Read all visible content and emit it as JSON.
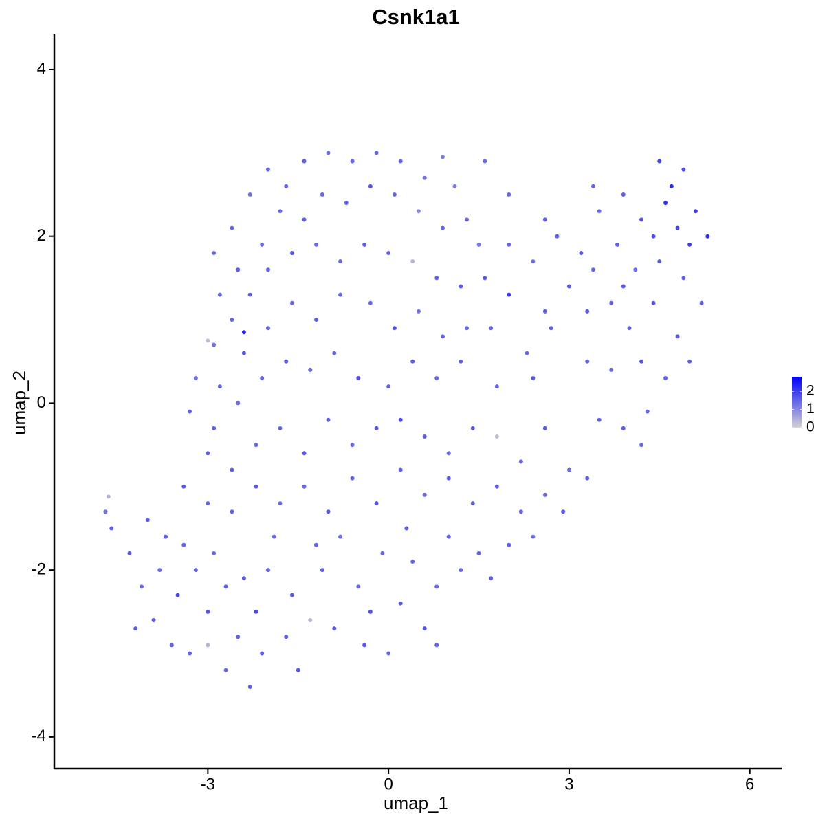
{
  "chart_data": {
    "type": "scatter",
    "title": "Csnk1a1",
    "xlabel": "umap_1",
    "ylabel": "umap_2",
    "xlim": [
      -5.55,
      6.54
    ],
    "ylim": [
      -4.38,
      4.42
    ],
    "xticks": [
      -3,
      0,
      3,
      6
    ],
    "yticks": [
      -4,
      -2,
      0,
      2,
      4
    ],
    "color_low": "#d3d3d3",
    "color_high": "#0000ff",
    "colorlim": [
      0,
      2.8
    ],
    "colorticks": [
      0,
      1,
      2
    ],
    "x": [
      -2.9,
      -2.6,
      -2.3,
      -2.0,
      -1.7,
      -1.4,
      -1.0,
      -0.6,
      -0.2,
      0.2,
      0.6,
      1.1,
      1.6,
      0.9,
      -2.8,
      -2.5,
      -2.1,
      -1.8,
      -1.4,
      -1.1,
      -0.7,
      -0.3,
      0.1,
      0.5,
      0.9,
      -2.9,
      -2.6,
      -2.3,
      -2.0,
      -1.6,
      -1.2,
      -0.8,
      -0.4,
      0.0,
      0.4,
      0.8,
      1.2,
      -3.2,
      -2.8,
      -2.4,
      -2.4,
      -2.0,
      -1.6,
      -1.2,
      -0.8,
      -0.3,
      0.1,
      0.5,
      0.9,
      1.3,
      -3.3,
      -2.9,
      -2.5,
      -2.1,
      -1.7,
      -1.3,
      -0.9,
      -0.5,
      0.0,
      0.4,
      0.8,
      1.2,
      -3.0,
      1.6,
      2.0,
      2.0,
      2.4,
      2.8,
      3.2,
      3.5,
      3.9,
      4.2,
      4.5,
      4.7,
      4.9,
      5.1,
      5.3,
      4.6,
      4.8,
      5.0,
      4.4,
      2.6,
      3.0,
      3.4,
      3.8,
      4.1,
      4.5,
      4.9,
      5.2,
      2.3,
      2.7,
      3.3,
      3.7,
      4.0,
      4.4,
      4.8,
      5.0,
      1.8,
      2.4,
      3.3,
      3.7,
      4.2,
      4.6,
      1.7,
      3.9,
      4.3,
      3.9,
      3.5,
      4.2,
      2.0,
      2.6,
      3.4,
      1.3,
      1.5,
      -3.0,
      -2.6,
      -2.2,
      -1.8,
      -1.4,
      -1.0,
      -0.6,
      -0.2,
      0.2,
      0.6,
      1.0,
      1.4,
      1.8,
      2.2,
      2.6,
      3.0,
      3.3,
      -3.4,
      -3.0,
      -2.6,
      -2.2,
      -1.8,
      -1.4,
      -1.0,
      -0.6,
      -0.2,
      0.2,
      0.6,
      1.0,
      1.4,
      1.8,
      2.2,
      2.6,
      2.9,
      -4.7,
      -4.65,
      -4.6,
      -4.3,
      -4.0,
      -3.7,
      -4.1,
      -3.8,
      -3.5,
      -3.9,
      -3.6,
      -3.3,
      -3.0,
      -3.2,
      -2.9,
      -2.7,
      -2.5,
      -2.7,
      -2.3,
      -2.1,
      -2.2,
      -2.0,
      -1.9,
      -1.6,
      -1.7,
      -1.3,
      -1.5,
      -1.1,
      -0.9,
      -0.8,
      -0.5,
      -0.4,
      -0.1,
      0.0,
      0.2,
      0.4,
      0.6,
      0.8,
      1.0,
      1.2,
      1.5,
      1.7,
      2.0,
      2.4,
      -3.0,
      -2.4,
      -1.2,
      0.3,
      0.8,
      -3.4,
      -4.2,
      -0.3
    ],
    "y": [
      1.8,
      2.1,
      2.5,
      2.8,
      2.6,
      2.9,
      3.0,
      2.9,
      3.0,
      2.9,
      2.7,
      2.6,
      2.9,
      2.95,
      1.3,
      1.6,
      1.9,
      2.3,
      2.2,
      2.5,
      2.4,
      2.6,
      2.5,
      2.3,
      2.1,
      0.7,
      1.0,
      1.3,
      1.6,
      1.8,
      1.9,
      1.7,
      1.9,
      1.8,
      1.7,
      1.5,
      1.4,
      0.3,
      0.2,
      0.6,
      0.85,
      0.9,
      1.2,
      1.0,
      1.3,
      1.2,
      0.9,
      1.1,
      0.8,
      0.9,
      -0.1,
      -0.3,
      0.0,
      0.3,
      0.5,
      0.4,
      0.6,
      0.3,
      0.2,
      0.5,
      0.3,
      0.5,
      0.75,
      1.5,
      1.9,
      1.3,
      1.7,
      2.0,
      1.8,
      2.3,
      2.5,
      2.2,
      2.9,
      2.6,
      2.8,
      2.3,
      2.0,
      2.4,
      2.1,
      1.9,
      2.0,
      1.1,
      1.4,
      1.6,
      1.9,
      1.6,
      1.7,
      1.5,
      1.2,
      0.6,
      0.9,
      1.1,
      1.2,
      0.9,
      1.2,
      0.8,
      0.5,
      0.2,
      0.3,
      0.5,
      0.4,
      0.5,
      0.3,
      0.9,
      1.4,
      -0.1,
      -0.3,
      -0.2,
      -0.5,
      2.5,
      2.2,
      2.6,
      2.2,
      1.9,
      -0.6,
      -0.8,
      -0.5,
      -0.3,
      -0.6,
      -0.2,
      -0.5,
      -0.3,
      -0.2,
      -0.4,
      -0.6,
      -0.3,
      -0.4,
      -0.7,
      -0.3,
      -0.8,
      -0.9,
      -1.0,
      -1.2,
      -1.3,
      -1.0,
      -1.2,
      -1.0,
      -1.3,
      -0.9,
      -1.2,
      -0.8,
      -1.1,
      -0.9,
      -1.2,
      -1.0,
      -1.3,
      -1.1,
      -1.3,
      -1.3,
      -1.12,
      -1.5,
      -1.8,
      -1.4,
      -1.6,
      -2.2,
      -2.0,
      -2.3,
      -2.6,
      -2.9,
      -3.0,
      -2.5,
      -2.0,
      -1.8,
      -2.2,
      -2.8,
      -3.2,
      -3.4,
      -3.0,
      -2.5,
      -2.0,
      -1.6,
      -2.3,
      -2.8,
      -2.6,
      -3.2,
      -2.0,
      -2.7,
      -1.6,
      -2.2,
      -2.9,
      -1.8,
      -3.0,
      -2.4,
      -1.9,
      -2.7,
      -2.2,
      -1.6,
      -2.0,
      -1.8,
      -2.1,
      -1.7,
      -1.6,
      -2.9,
      -2.1,
      -1.7,
      -1.5,
      -2.9,
      -1.7,
      -2.7,
      -2.5
    ],
    "values": [
      1.4,
      1.5,
      1.3,
      1.5,
      1.4,
      1.6,
      1.3,
      1.5,
      1.4,
      1.5,
      1.3,
      1.2,
      1.4,
      1.1,
      1.5,
      1.6,
      1.4,
      1.5,
      1.6,
      1.4,
      1.5,
      1.7,
      1.4,
      1.0,
      1.5,
      1.3,
      1.5,
      1.6,
      1.5,
      1.7,
      1.4,
      1.5,
      1.6,
      1.5,
      0.4,
      1.5,
      1.6,
      1.4,
      1.5,
      1.6,
      2.3,
      1.5,
      1.4,
      1.6,
      1.5,
      1.4,
      1.7,
      1.3,
      1.5,
      1.4,
      1.5,
      1.6,
      1.4,
      1.5,
      1.6,
      1.5,
      1.4,
      1.8,
      1.5,
      1.6,
      1.4,
      1.5,
      0.3,
      1.6,
      1.5,
      2.1,
      1.4,
      1.5,
      1.6,
      1.4,
      1.5,
      1.7,
      2.0,
      2.3,
      1.8,
      2.1,
      2.2,
      2.2,
      1.9,
      2.0,
      1.8,
      1.5,
      1.6,
      1.5,
      1.6,
      1.4,
      1.7,
      1.5,
      1.6,
      1.4,
      1.5,
      1.6,
      1.5,
      1.5,
      1.6,
      1.6,
      1.5,
      1.5,
      1.6,
      1.5,
      1.4,
      1.6,
      1.5,
      1.5,
      1.6,
      1.5,
      1.6,
      1.5,
      1.4,
      1.4,
      1.6,
      1.5,
      1.5,
      1.2,
      1.5,
      1.6,
      1.4,
      1.5,
      1.7,
      1.5,
      1.4,
      1.6,
      1.8,
      1.5,
      1.4,
      1.6,
      0.3,
      1.5,
      1.6,
      1.4,
      1.5,
      1.6,
      1.5,
      1.5,
      1.6,
      1.4,
      1.5,
      1.6,
      1.5,
      1.7,
      1.5,
      1.4,
      1.6,
      1.5,
      1.6,
      1.5,
      1.4,
      1.6,
      1.3,
      0.4,
      1.5,
      1.6,
      1.5,
      1.6,
      1.5,
      1.4,
      1.8,
      1.6,
      1.5,
      1.5,
      1.6,
      1.5,
      1.4,
      1.6,
      1.5,
      1.4,
      1.5,
      1.6,
      1.8,
      1.5,
      1.4,
      1.6,
      1.5,
      0.4,
      1.7,
      1.5,
      1.6,
      1.4,
      1.5,
      1.6,
      1.5,
      1.4,
      1.6,
      1.5,
      1.7,
      1.5,
      1.6,
      1.4,
      1.5,
      1.6,
      1.5,
      1.4,
      0.4,
      1.6,
      1.5,
      1.6,
      1.5,
      1.5,
      1.6,
      1.7
    ]
  }
}
